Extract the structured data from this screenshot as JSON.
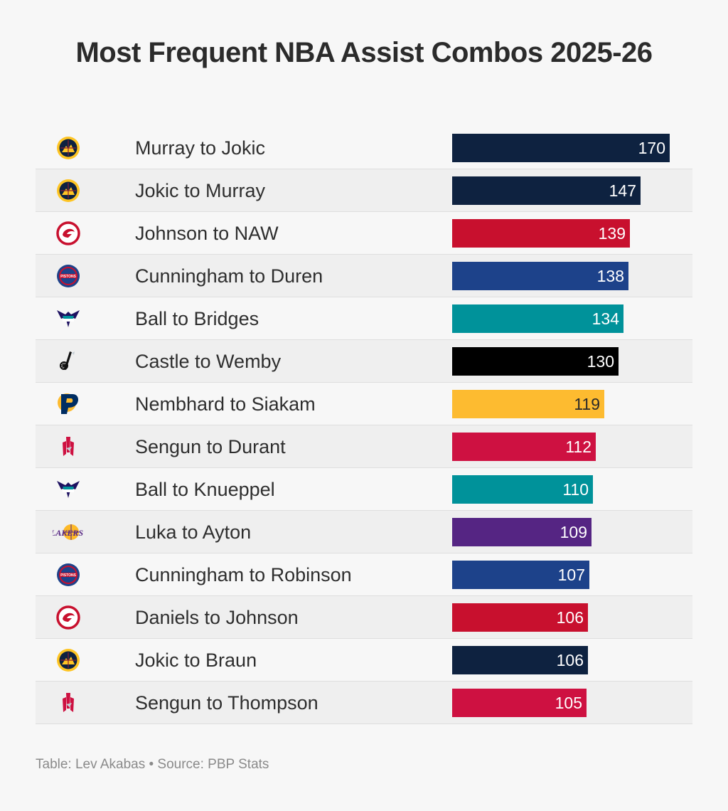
{
  "title": "Most Frequent NBA Assist Combos 2025-26",
  "footer": "Table: Lev Akabas • Source: PBP Stats",
  "team_colors": {
    "nuggets": "#0e2240",
    "hawks": "#c8102e",
    "pistons": "#1d428a",
    "hornets": "#00929a",
    "spurs": "#000000",
    "pacers": "#fdbb30",
    "rockets": "#ce1141",
    "lakers": "#552583"
  },
  "chart_data": {
    "type": "bar",
    "title": "Most Frequent NBA Assist Combos 2025-26",
    "xlim": [
      0,
      170
    ],
    "categories": [
      "Murray to Jokic",
      "Jokic to Murray",
      "Johnson to NAW",
      "Cunningham to Duren",
      "Ball to Bridges",
      "Castle to Wemby",
      "Nembhard to Siakam",
      "Sengun to Durant",
      "Ball to Knueppel",
      "Luka to Ayton",
      "Cunningham to Robinson",
      "Daniels to Johnson",
      "Jokic to Braun",
      "Sengun to Thompson"
    ],
    "values": [
      170,
      147,
      139,
      138,
      134,
      130,
      119,
      112,
      110,
      109,
      107,
      106,
      106,
      105
    ],
    "rows": [
      {
        "label": "Murray to Jokic",
        "value": 170,
        "team": "nuggets",
        "logo_icon": "nuggets-logo-icon",
        "color": "#0e2240"
      },
      {
        "label": "Jokic to Murray",
        "value": 147,
        "team": "nuggets",
        "logo_icon": "nuggets-logo-icon",
        "color": "#0e2240"
      },
      {
        "label": "Johnson to NAW",
        "value": 139,
        "team": "hawks",
        "logo_icon": "hawks-logo-icon",
        "color": "#c8102e"
      },
      {
        "label": "Cunningham to Duren",
        "value": 138,
        "team": "pistons",
        "logo_icon": "pistons-logo-icon",
        "color": "#1d428a"
      },
      {
        "label": "Ball to Bridges",
        "value": 134,
        "team": "hornets",
        "logo_icon": "hornets-logo-icon",
        "color": "#00929a"
      },
      {
        "label": "Castle to Wemby",
        "value": 130,
        "team": "spurs",
        "logo_icon": "spurs-logo-icon",
        "color": "#000000"
      },
      {
        "label": "Nembhard to Siakam",
        "value": 119,
        "team": "pacers",
        "logo_icon": "pacers-logo-icon",
        "color": "#fdbb30"
      },
      {
        "label": "Sengun to Durant",
        "value": 112,
        "team": "rockets",
        "logo_icon": "rockets-logo-icon",
        "color": "#ce1141"
      },
      {
        "label": "Ball to Knueppel",
        "value": 110,
        "team": "hornets",
        "logo_icon": "hornets-logo-icon",
        "color": "#00929a"
      },
      {
        "label": "Luka to Ayton",
        "value": 109,
        "team": "lakers",
        "logo_icon": "lakers-logo-icon",
        "color": "#552583"
      },
      {
        "label": "Cunningham to Robinson",
        "value": 107,
        "team": "pistons",
        "logo_icon": "pistons-logo-icon",
        "color": "#1d428a"
      },
      {
        "label": "Daniels to Johnson",
        "value": 106,
        "team": "hawks",
        "logo_icon": "hawks-logo-icon",
        "color": "#c8102e"
      },
      {
        "label": "Jokic to Braun",
        "value": 106,
        "team": "nuggets",
        "logo_icon": "nuggets-logo-icon",
        "color": "#0e2240"
      },
      {
        "label": "Sengun to Thompson",
        "value": 105,
        "team": "rockets",
        "logo_icon": "rockets-logo-icon",
        "color": "#ce1141"
      }
    ]
  }
}
